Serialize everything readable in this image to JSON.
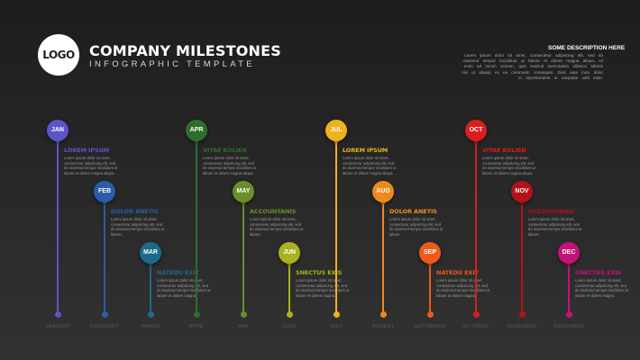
{
  "header": {
    "logo_text": "LOGO",
    "title": "COMPANY MILESTONES",
    "subtitle": "INFOGRAPHIC TEMPLATE",
    "description_title": "SOME DESCRIPTION HERE",
    "description_body": "Lorem ipsum dolor sit amet, consectetur adipiscing elit, sed do eiusmod tempor incididunt ut labore et dolore magna aliqua. Ut enim ad minim veniam, quis nostrud exercitation ullamco laboris nisi ut aliquip ex ea commodo consequat. Duis aute irure dolor in reprehenderit in voluptate velit esse."
  },
  "milestones": [
    {
      "badge": "JAN",
      "heading": "LOREM IPSUM",
      "body": "Lorem ipsum dolor sit amet, consectetur adipiscing elit, sed do eiusmod tempor incididunt ut labore et dolore magna aliqua.",
      "month": "JANUARY",
      "color": "#5b55c8"
    },
    {
      "badge": "FEB",
      "heading": "DOLOR ANETIS",
      "body": "Lorem ipsum dolor sit amet, consectetur adipiscing elit, sed do eiusmod tempor incididunt ut labore.",
      "month": "FEBRUARY",
      "color": "#2a5ca8"
    },
    {
      "badge": "MAR",
      "heading": "NATEDU EXIT",
      "body": "Lorem ipsum dolor sit amet, consectetur adipiscing elit, sed do eiusmod tempor incididunt ut labore et dolore magna.",
      "month": "MARCH",
      "color": "#1c6a87"
    },
    {
      "badge": "APR",
      "heading": "VITAE KOLIEN",
      "body": "Lorem ipsum dolor sit amet, consectetur adipiscing elit, sed do eiusmod tempor incididunt ut labore et dolore magna aliqua.",
      "month": "APRIL",
      "color": "#2f6e2a"
    },
    {
      "badge": "MAY",
      "heading": "ACCOUNTANIS",
      "body": "Lorem ipsum dolor sit amet, consectetur adipiscing elit, sed do eiusmod tempor incididunt ut labore.",
      "month": "MAY",
      "color": "#6b8f2a"
    },
    {
      "badge": "JUN",
      "heading": "SNECTUS EXIS",
      "body": "Lorem ipsum dolor sit amet, consectetur adipiscing elit, sed do eiusmod tempor incididunt ut labore et dolore magna.",
      "month": "JUNE",
      "color": "#a9b21e"
    },
    {
      "badge": "JUL",
      "heading": "LOREM IPSUM",
      "body": "Lorem ipsum dolor sit amet, consectetur adipiscing elit, sed do eiusmod tempor incididunt ut labore et dolore magna aliqua.",
      "month": "JULY",
      "color": "#f0b21c"
    },
    {
      "badge": "AUG",
      "heading": "DOLOR ANETIS",
      "body": "Lorem ipsum dolor sit amet, consectetur adipiscing elit, sed do eiusmod tempor incididunt ut labore.",
      "month": "AUGUST",
      "color": "#ee8a1c"
    },
    {
      "badge": "SEP",
      "heading": "NATEDU EXIT",
      "body": "Lorem ipsum dolor sit amet, consectetur adipiscing elit, sed do eiusmod tempor incididunt ut labore et dolore magna.",
      "month": "SEPTEMBER",
      "color": "#ec5a1c"
    },
    {
      "badge": "OCT",
      "heading": "VITAE KOLIEN",
      "body": "Lorem ipsum dolor sit amet, consectetur adipiscing elit, sed do eiusmod tempor incididunt ut labore et dolore magna aliqua.",
      "month": "OCTOBER",
      "color": "#d81e1e"
    },
    {
      "badge": "NOV",
      "heading": "ACCOUNTANIS",
      "body": "Lorem ipsum dolor sit amet, consectetur adipiscing elit, sed do eiusmod tempor incididunt ut labore.",
      "month": "NOVEMBER",
      "color": "#b3121b"
    },
    {
      "badge": "DEC",
      "heading": "SNECTUS EXIS",
      "body": "Lorem ipsum dolor sit amet, consectetur adipiscing elit, sed do eiusmod tempor incididunt ut labore et dolore magna.",
      "month": "DECEMBER",
      "color": "#c4127a"
    }
  ]
}
